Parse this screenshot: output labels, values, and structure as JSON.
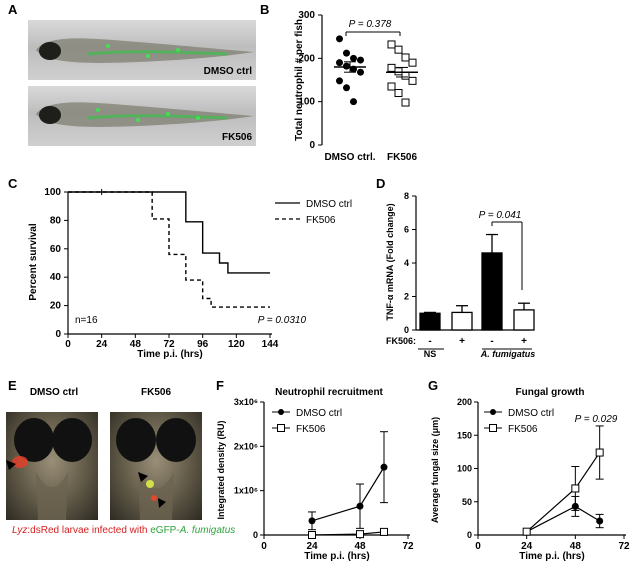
{
  "panels": {
    "A": {
      "letter": "A",
      "labels": [
        "DMSO ctrl",
        "FK506"
      ]
    },
    "B": {
      "letter": "B",
      "ylabel": "Total neutrophil # per fish",
      "pvalue": "P = 0.378",
      "ticks": [
        "0",
        "100",
        "200",
        "300"
      ],
      "categories": [
        "DMSO ctrl.",
        "FK506"
      ]
    },
    "C": {
      "letter": "C",
      "ylabel": "Percent survival",
      "xlabel": "Time p.i. (hrs)",
      "legend": [
        "DMSO ctrl",
        "FK506"
      ],
      "n": "n=16",
      "pvalue": "P = 0.0310",
      "xticks": [
        "0",
        "24",
        "48",
        "72",
        "96",
        "120",
        "144"
      ],
      "yticks": [
        "0",
        "20",
        "40",
        "60",
        "80",
        "100"
      ]
    },
    "D": {
      "letter": "D",
      "ylabel": "TNF-α mRNA (Fold change)",
      "pvalue": "P = 0.041",
      "yticks": [
        "0",
        "2",
        "4",
        "6",
        "8"
      ],
      "fk_label": "FK506:",
      "signs": [
        "-",
        "+",
        "-",
        "+"
      ],
      "groups": [
        "NS",
        "A. fumigatus"
      ]
    },
    "E": {
      "letter": "E",
      "labels": [
        "DMSO ctrl",
        "FK506"
      ],
      "caption_lyz": "Lyz",
      "caption_dsred": ":dsRed larvae infected with ",
      "caption_egfp": "eGFP-",
      "caption_af": "A. fumigatus"
    },
    "F": {
      "letter": "F",
      "title": "Neutrophil recruitment",
      "ylabel": "Integrated density (RU)",
      "xlabel": "Time p.i. (hrs)",
      "legend": [
        "DMSO ctrl",
        "FK506"
      ],
      "xticks": [
        "0",
        "24",
        "48",
        "72"
      ],
      "yticks": [
        "0",
        "1x10⁶",
        "2x10⁶",
        "3x10⁶"
      ]
    },
    "G": {
      "letter": "G",
      "title": "Fungal growth",
      "ylabel": "Average fungal size (μm)",
      "xlabel": "Time p.i. (hrs)",
      "legend": [
        "DMSO ctrl",
        "FK506"
      ],
      "pvalue": "P = 0.029",
      "xticks": [
        "0",
        "24",
        "48",
        "72"
      ],
      "yticks": [
        "0",
        "50",
        "100",
        "150",
        "200"
      ]
    }
  },
  "chart_data": [
    {
      "panel": "B",
      "type": "scatter",
      "categories": [
        "DMSO ctrl.",
        "FK506"
      ],
      "ylim": [
        0,
        300
      ],
      "series": [
        {
          "name": "DMSO ctrl.",
          "marker": "filled-circle",
          "values": [
            245,
            212,
            200,
            196,
            190,
            182,
            175,
            168,
            148,
            132,
            100
          ],
          "mean": 180,
          "sem": 12
        },
        {
          "name": "FK506",
          "marker": "open-square",
          "values": [
            232,
            220,
            202,
            190,
            178,
            170,
            160,
            148,
            135,
            120,
            98
          ],
          "mean": 168,
          "sem": 11
        }
      ]
    },
    {
      "panel": "C",
      "type": "line",
      "xlim": [
        0,
        144
      ],
      "ylim": [
        0,
        100
      ],
      "series": [
        {
          "name": "DMSO ctrl",
          "steps": [
            [
              0,
              100
            ],
            [
              84,
              100
            ],
            [
              84,
              79
            ],
            [
              96,
              79
            ],
            [
              96,
              57
            ],
            [
              108,
              57
            ],
            [
              108,
              50
            ],
            [
              114,
              50
            ],
            [
              114,
              43
            ],
            [
              144,
              43
            ]
          ]
        },
        {
          "name": "FK506",
          "steps": [
            [
              0,
              100
            ],
            [
              60,
              100
            ],
            [
              60,
              81
            ],
            [
              72,
              81
            ],
            [
              72,
              56
            ],
            [
              84,
              56
            ],
            [
              84,
              38
            ],
            [
              96,
              38
            ],
            [
              96,
              25
            ],
            [
              102,
              25
            ],
            [
              102,
              19
            ],
            [
              144,
              19
            ]
          ]
        }
      ]
    },
    {
      "panel": "D",
      "type": "bar",
      "ylim": [
        0,
        8
      ],
      "categories": [
        "NS -",
        "NS +",
        "A. fumigatus -",
        "A. fumigatus +"
      ],
      "values": [
        1.0,
        1.05,
        4.6,
        1.2
      ],
      "errors": [
        0.05,
        0.4,
        1.1,
        0.4
      ],
      "fills": [
        "#000000",
        "#ffffff",
        "#000000",
        "#ffffff"
      ]
    },
    {
      "panel": "F",
      "type": "line",
      "xlim": [
        0,
        72
      ],
      "ylim": [
        0,
        3000000
      ],
      "x": [
        24,
        48,
        60
      ],
      "series": [
        {
          "name": "DMSO ctrl",
          "marker": "filled-circle",
          "values": [
            320000,
            650000,
            1530000
          ],
          "errors": [
            200000,
            500000,
            800000
          ]
        },
        {
          "name": "FK506",
          "marker": "open-square",
          "values": [
            0,
            20000,
            70000
          ],
          "errors": [
            0,
            0,
            0
          ]
        }
      ]
    },
    {
      "panel": "G",
      "type": "line",
      "xlim": [
        0,
        72
      ],
      "ylim": [
        0,
        200
      ],
      "x": [
        24,
        48,
        60
      ],
      "series": [
        {
          "name": "DMSO ctrl",
          "marker": "filled-circle",
          "values": [
            5,
            43,
            21
          ],
          "errors": [
            0,
            15,
            10
          ]
        },
        {
          "name": "FK506",
          "marker": "open-square",
          "values": [
            5,
            70,
            124
          ],
          "errors": [
            0,
            33,
            40
          ]
        }
      ]
    }
  ]
}
